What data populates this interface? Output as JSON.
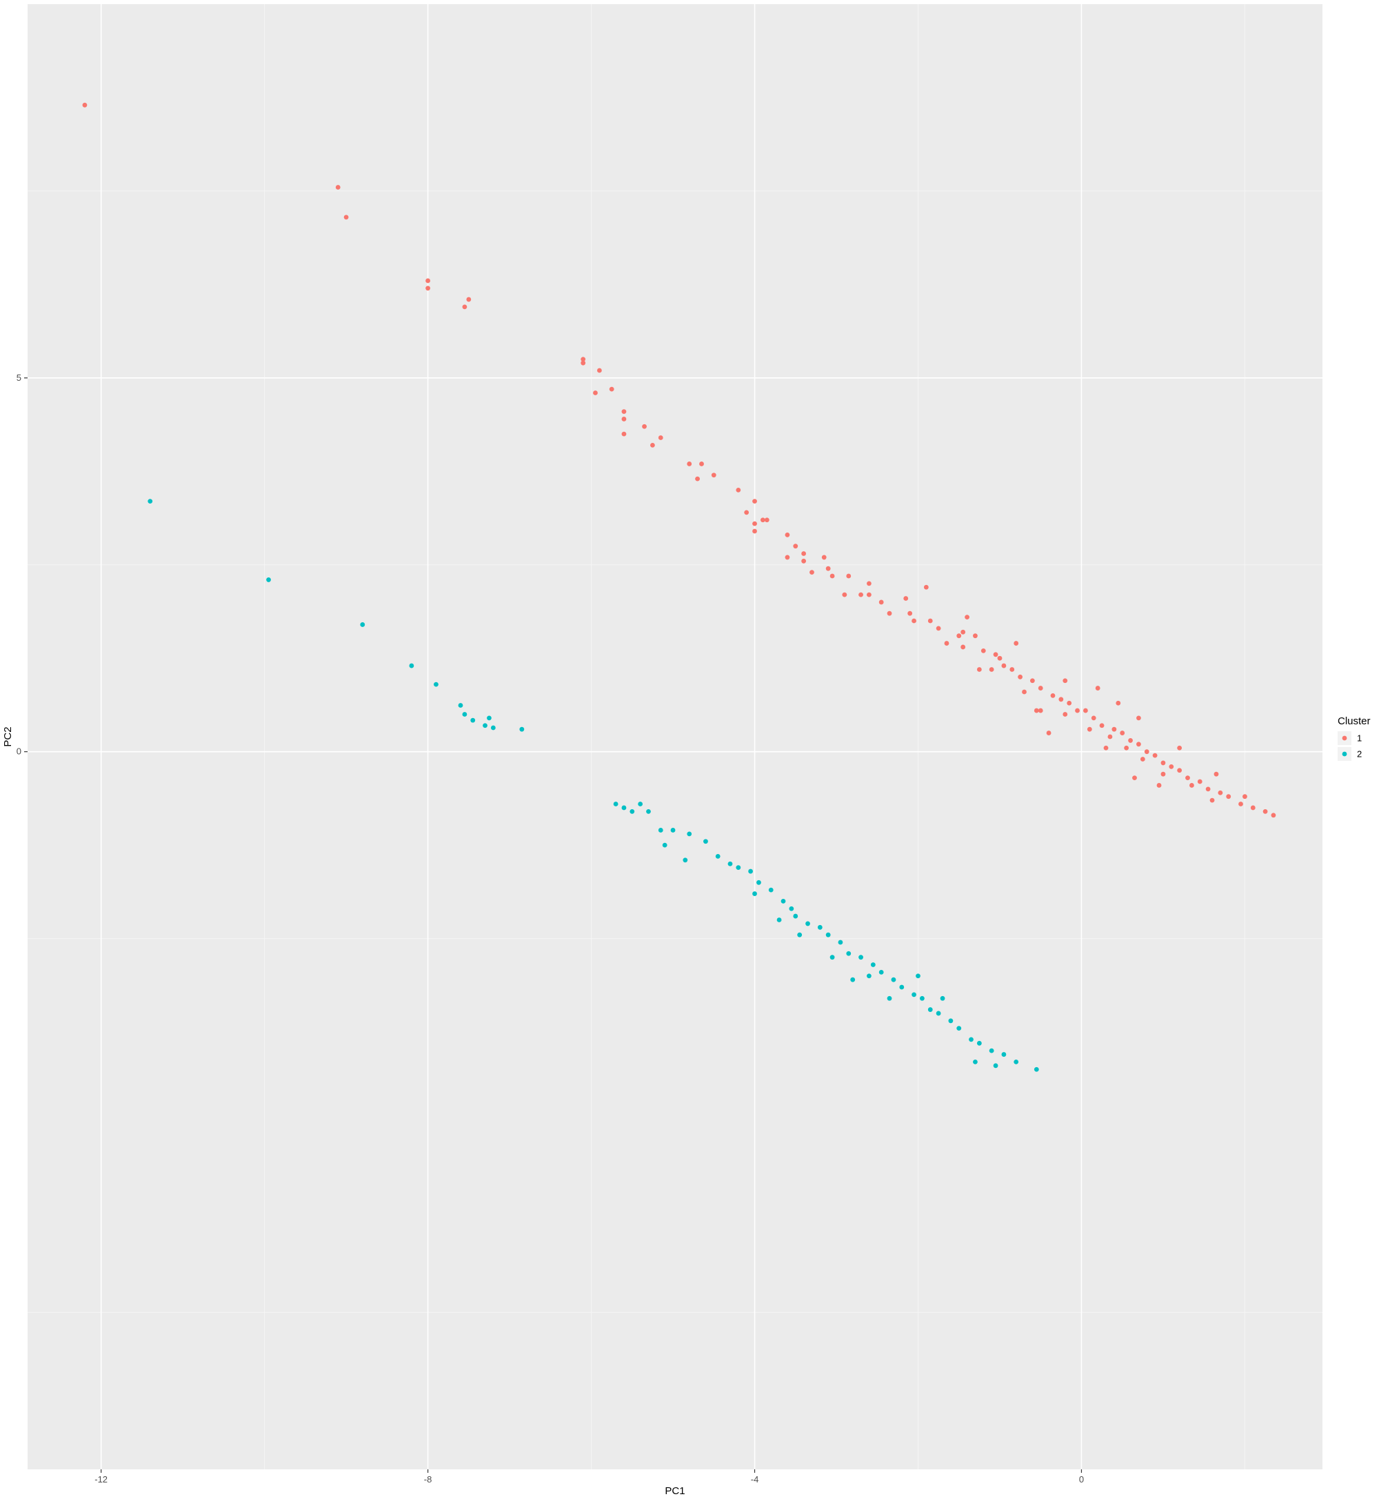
{
  "chart_data": {
    "type": "scatter",
    "title": "",
    "xlabel": "PC1",
    "ylabel": "PC2",
    "xlim": [
      -12.9,
      2.95
    ],
    "ylim": [
      -9.6,
      10.0
    ],
    "x_ticks": [
      -12,
      -8,
      -4,
      0
    ],
    "x_tick_labels": [
      "-12",
      "-8",
      "-4",
      "0"
    ],
    "y_ticks": [
      0,
      5
    ],
    "y_tick_labels": [
      "0",
      "5"
    ],
    "grid": true,
    "legend": {
      "title": "Cluster",
      "position": "right"
    },
    "colors": {
      "panel": "#ebebeb",
      "grid_major": "#ffffff",
      "grid_minor": "#f5f5f5"
    },
    "series": [
      {
        "name": "1",
        "color": "#f8766d",
        "points": [
          [
            -12.2,
            8.65
          ],
          [
            -9.1,
            7.55
          ],
          [
            -9.0,
            7.15
          ],
          [
            -8.0,
            6.3
          ],
          [
            -8.0,
            6.2
          ],
          [
            -7.5,
            6.05
          ],
          [
            -7.55,
            5.95
          ],
          [
            -6.1,
            5.2
          ],
          [
            -6.1,
            5.25
          ],
          [
            -5.9,
            5.1
          ],
          [
            -5.95,
            4.8
          ],
          [
            -5.75,
            4.85
          ],
          [
            -5.6,
            4.55
          ],
          [
            -5.6,
            4.45
          ],
          [
            -5.6,
            4.25
          ],
          [
            -5.35,
            4.35
          ],
          [
            -5.25,
            4.1
          ],
          [
            -5.15,
            4.2
          ],
          [
            -4.8,
            3.85
          ],
          [
            -4.65,
            3.85
          ],
          [
            -4.7,
            3.65
          ],
          [
            -4.5,
            3.7
          ],
          [
            -4.2,
            3.5
          ],
          [
            -4.0,
            3.35
          ],
          [
            -4.1,
            3.2
          ],
          [
            -3.9,
            3.1
          ],
          [
            -4.0,
            3.05
          ],
          [
            -3.85,
            3.1
          ],
          [
            -4.0,
            2.95
          ],
          [
            -3.6,
            2.9
          ],
          [
            -3.5,
            2.75
          ],
          [
            -3.4,
            2.65
          ],
          [
            -3.6,
            2.6
          ],
          [
            -3.4,
            2.55
          ],
          [
            -3.15,
            2.6
          ],
          [
            -3.3,
            2.4
          ],
          [
            -3.1,
            2.45
          ],
          [
            -3.05,
            2.35
          ],
          [
            -2.85,
            2.35
          ],
          [
            -2.9,
            2.1
          ],
          [
            -2.6,
            2.25
          ],
          [
            -2.6,
            2.1
          ],
          [
            -2.7,
            2.1
          ],
          [
            -2.45,
            2.0
          ],
          [
            -2.15,
            2.05
          ],
          [
            -1.9,
            2.2
          ],
          [
            -2.35,
            1.85
          ],
          [
            -2.1,
            1.85
          ],
          [
            -2.05,
            1.75
          ],
          [
            -1.85,
            1.75
          ],
          [
            -1.75,
            1.65
          ],
          [
            -1.5,
            1.55
          ],
          [
            -1.45,
            1.6
          ],
          [
            -1.65,
            1.45
          ],
          [
            -1.3,
            1.55
          ],
          [
            -1.45,
            1.4
          ],
          [
            -1.2,
            1.35
          ],
          [
            -1.05,
            1.3
          ],
          [
            -1.0,
            1.25
          ],
          [
            -0.95,
            1.15
          ],
          [
            -1.1,
            1.1
          ],
          [
            -0.85,
            1.1
          ],
          [
            -0.75,
            1.0
          ],
          [
            -0.6,
            0.95
          ],
          [
            -0.5,
            0.85
          ],
          [
            -0.7,
            0.8
          ],
          [
            -0.35,
            0.75
          ],
          [
            -0.25,
            0.7
          ],
          [
            -0.15,
            0.65
          ],
          [
            -0.05,
            0.55
          ],
          [
            0.05,
            0.55
          ],
          [
            -0.2,
            0.5
          ],
          [
            0.15,
            0.45
          ],
          [
            0.25,
            0.35
          ],
          [
            0.1,
            0.3
          ],
          [
            0.4,
            0.3
          ],
          [
            0.5,
            0.25
          ],
          [
            0.35,
            0.2
          ],
          [
            0.6,
            0.15
          ],
          [
            0.7,
            0.1
          ],
          [
            0.55,
            0.05
          ],
          [
            0.8,
            0.0
          ],
          [
            0.9,
            -0.05
          ],
          [
            0.75,
            -0.1
          ],
          [
            1.0,
            -0.15
          ],
          [
            1.1,
            -0.2
          ],
          [
            1.2,
            -0.25
          ],
          [
            1.0,
            -0.3
          ],
          [
            1.3,
            -0.35
          ],
          [
            1.45,
            -0.4
          ],
          [
            1.35,
            -0.45
          ],
          [
            1.55,
            -0.5
          ],
          [
            1.7,
            -0.55
          ],
          [
            1.8,
            -0.6
          ],
          [
            1.6,
            -0.65
          ],
          [
            1.95,
            -0.7
          ],
          [
            2.1,
            -0.75
          ],
          [
            2.25,
            -0.8
          ],
          [
            2.35,
            -0.85
          ],
          [
            2.0,
            -0.6
          ],
          [
            -0.4,
            0.25
          ],
          [
            -0.55,
            0.55
          ],
          [
            -0.2,
            0.95
          ],
          [
            0.45,
            0.65
          ],
          [
            0.2,
            0.85
          ],
          [
            1.2,
            0.05
          ],
          [
            0.95,
            -0.45
          ],
          [
            0.65,
            -0.35
          ],
          [
            1.65,
            -0.3
          ],
          [
            -1.4,
            1.8
          ],
          [
            -1.25,
            1.1
          ],
          [
            -0.8,
            1.45
          ],
          [
            -0.5,
            0.55
          ],
          [
            0.3,
            0.05
          ],
          [
            0.7,
            0.45
          ]
        ]
      },
      {
        "name": "2",
        "color": "#00bfc4",
        "points": [
          [
            -11.4,
            3.35
          ],
          [
            -9.95,
            2.3
          ],
          [
            -8.8,
            1.7
          ],
          [
            -8.2,
            1.15
          ],
          [
            -7.9,
            0.9
          ],
          [
            -7.6,
            0.62
          ],
          [
            -7.55,
            0.5
          ],
          [
            -7.45,
            0.42
          ],
          [
            -7.3,
            0.35
          ],
          [
            -7.25,
            0.45
          ],
          [
            -7.2,
            0.32
          ],
          [
            -6.85,
            0.3
          ],
          [
            -5.7,
            -0.7
          ],
          [
            -5.6,
            -0.75
          ],
          [
            -5.5,
            -0.8
          ],
          [
            -5.4,
            -0.7
          ],
          [
            -5.3,
            -0.8
          ],
          [
            -5.15,
            -1.05
          ],
          [
            -5.0,
            -1.05
          ],
          [
            -4.8,
            -1.1
          ],
          [
            -4.6,
            -1.2
          ],
          [
            -4.45,
            -1.4
          ],
          [
            -4.3,
            -1.5
          ],
          [
            -4.2,
            -1.55
          ],
          [
            -4.05,
            -1.6
          ],
          [
            -3.95,
            -1.75
          ],
          [
            -3.8,
            -1.85
          ],
          [
            -3.65,
            -2.0
          ],
          [
            -3.55,
            -2.1
          ],
          [
            -3.5,
            -2.2
          ],
          [
            -3.35,
            -2.3
          ],
          [
            -3.2,
            -2.35
          ],
          [
            -3.1,
            -2.45
          ],
          [
            -2.95,
            -2.55
          ],
          [
            -2.85,
            -2.7
          ],
          [
            -2.7,
            -2.75
          ],
          [
            -2.55,
            -2.85
          ],
          [
            -2.45,
            -2.95
          ],
          [
            -2.3,
            -3.05
          ],
          [
            -2.2,
            -3.15
          ],
          [
            -2.05,
            -3.25
          ],
          [
            -1.95,
            -3.3
          ],
          [
            -1.85,
            -3.45
          ],
          [
            -1.75,
            -3.5
          ],
          [
            -1.6,
            -3.6
          ],
          [
            -1.5,
            -3.7
          ],
          [
            -1.35,
            -3.85
          ],
          [
            -1.25,
            -3.9
          ],
          [
            -1.1,
            -4.0
          ],
          [
            -0.95,
            -4.05
          ],
          [
            -0.8,
            -4.15
          ],
          [
            -0.55,
            -4.25
          ],
          [
            -1.3,
            -4.15
          ],
          [
            -1.05,
            -4.2
          ],
          [
            -2.6,
            -3.0
          ],
          [
            -2.8,
            -3.05
          ],
          [
            -3.05,
            -2.75
          ],
          [
            -3.7,
            -2.25
          ],
          [
            -4.0,
            -1.9
          ],
          [
            -4.85,
            -1.45
          ],
          [
            -5.1,
            -1.25
          ],
          [
            -2.0,
            -3.0
          ],
          [
            -1.7,
            -3.3
          ],
          [
            -2.35,
            -3.3
          ],
          [
            -3.45,
            -2.45
          ]
        ]
      }
    ]
  }
}
